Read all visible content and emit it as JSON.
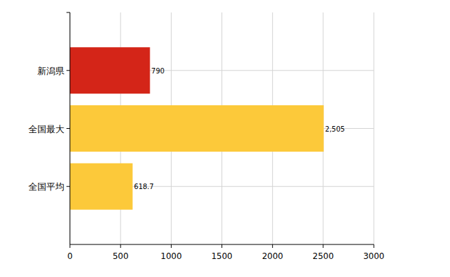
{
  "chart_data": {
    "type": "bar",
    "orientation": "horizontal",
    "categories": [
      "新潟県",
      "全国最大",
      "全国平均"
    ],
    "values": [
      790,
      2505,
      618.7
    ],
    "value_labels": [
      "790",
      "2,505",
      "618.7"
    ],
    "colors": [
      "#d42518",
      "#fcc93a",
      "#fcc93a"
    ],
    "xlim": [
      0,
      3000
    ],
    "xticks": [
      0,
      500,
      1000,
      1500,
      2000,
      2500,
      3000
    ],
    "grid": true,
    "data_labels": true
  }
}
